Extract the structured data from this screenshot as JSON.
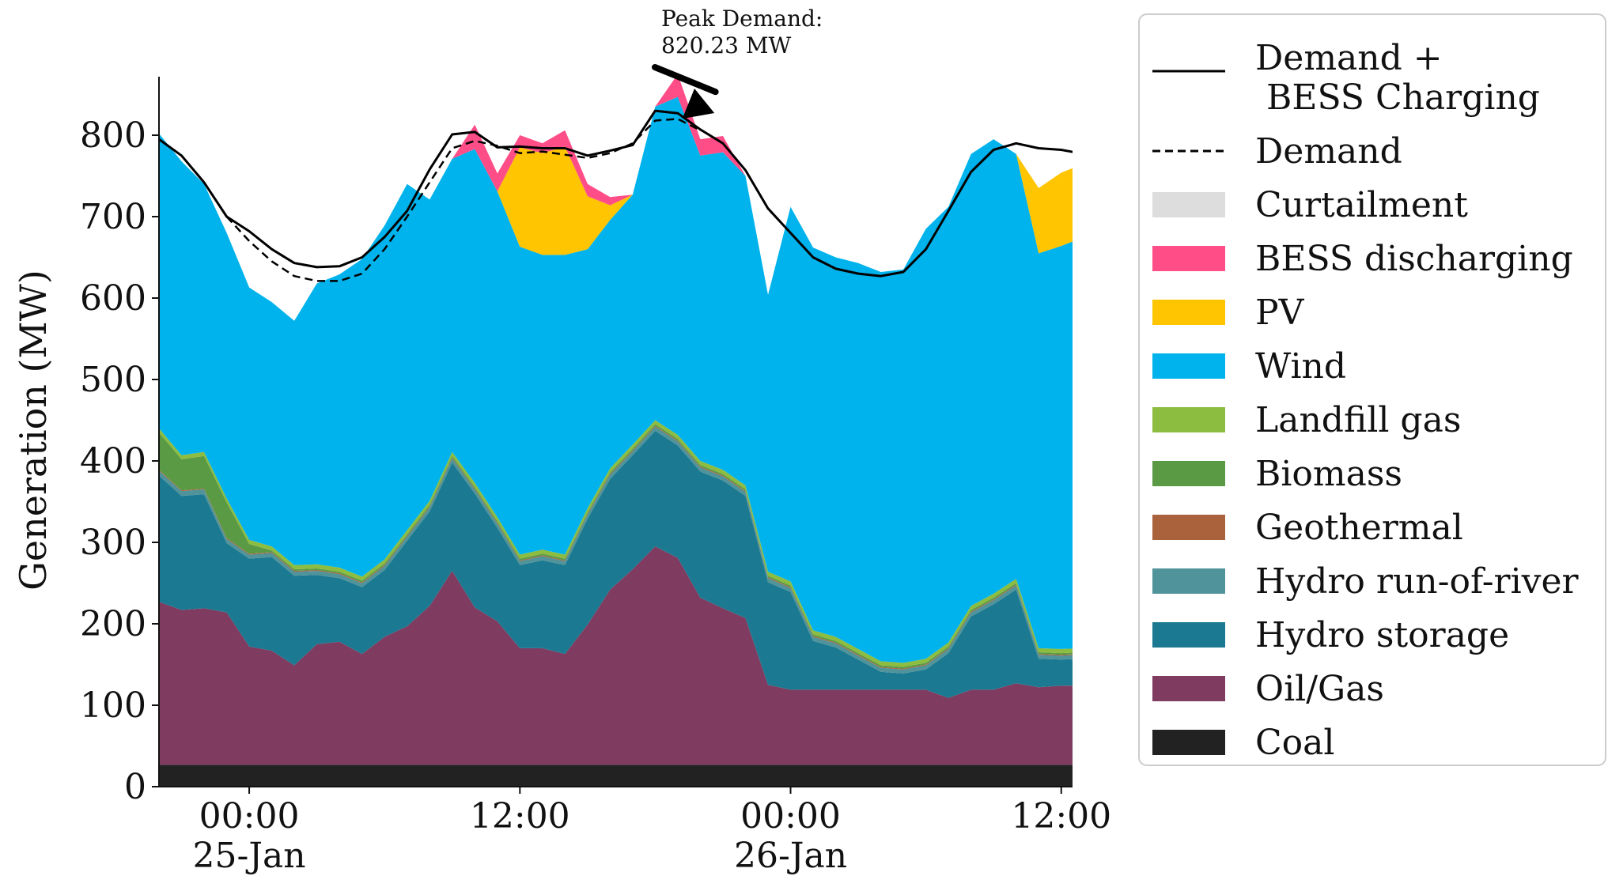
{
  "chart_data": {
    "type": "area",
    "title": "",
    "xlabel": "",
    "ylabel": "Generation (MW)",
    "ylim": [
      0,
      850
    ],
    "xlim": [
      -4,
      36.5
    ],
    "x_unit": "hours from 25-Jan 00:00",
    "grid": false,
    "legend_position": "right, outside plot",
    "x_ticks": [
      {
        "value": 0,
        "label_time": "00:00",
        "label_date": "25-Jan"
      },
      {
        "value": 12,
        "label_time": "12:00",
        "label_date": ""
      },
      {
        "value": 24,
        "label_time": "00:00",
        "label_date": "26-Jan"
      },
      {
        "value": 36,
        "label_time": "12:00",
        "label_date": ""
      }
    ],
    "y_ticks": [
      0,
      100,
      200,
      300,
      400,
      500,
      600,
      700,
      800
    ],
    "x": [
      -5,
      -4,
      -3,
      -2,
      -1,
      0,
      1,
      2,
      3,
      4,
      5,
      6,
      7,
      8,
      9,
      10,
      11,
      12,
      13,
      14,
      15,
      16,
      17,
      18,
      19,
      20,
      21,
      22,
      23,
      24,
      25,
      26,
      27,
      28,
      29,
      30,
      31,
      32,
      33,
      34,
      35,
      36,
      37,
      38,
      39,
      40,
      41
    ],
    "series": [
      {
        "name": "Coal",
        "color": "#222222",
        "values": [
          27,
          27,
          27,
          27,
          27,
          27,
          27,
          27,
          27,
          27,
          27,
          27,
          27,
          27,
          27,
          27,
          27,
          27,
          27,
          27,
          27,
          27,
          27,
          27,
          27,
          27,
          27,
          27,
          27,
          27,
          27,
          27,
          27,
          27,
          27,
          27,
          27,
          27,
          27,
          27,
          27,
          27,
          27,
          27,
          27,
          27,
          27
        ]
      },
      {
        "name": "Oil/Gas",
        "color": "#7f3b60",
        "values": [
          212,
          200,
          190,
          192,
          187,
          145,
          140,
          122,
          148,
          151,
          136,
          157,
          170,
          195,
          238,
          193,
          176,
          143,
          143,
          136,
          172,
          215,
          240,
          268,
          254,
          205,
          192,
          180,
          98,
          92,
          92,
          92,
          92,
          92,
          92,
          92,
          82,
          92,
          92,
          100,
          95,
          97,
          97,
          97,
          97,
          97,
          98
        ]
      },
      {
        "name": "Hydro storage",
        "color": "#1b7a91",
        "values": [
          147,
          155,
          140,
          140,
          85,
          108,
          115,
          110,
          85,
          78,
          82,
          82,
          105,
          116,
          133,
          140,
          115,
          102,
          108,
          109,
          130,
          136,
          140,
          142,
          138,
          155,
          157,
          150,
          126,
          120,
          60,
          52,
          37,
          22,
          20,
          25,
          55,
          90,
          105,
          115,
          35,
          32,
          33,
          35,
          100,
          105,
          120
        ]
      },
      {
        "name": "Hydro run-of-river",
        "color": "#50939a",
        "values": [
          6,
          6,
          6,
          6,
          5,
          5,
          5,
          5,
          5,
          5,
          5,
          5,
          5,
          5,
          5,
          5,
          5,
          5,
          5,
          5,
          5,
          5,
          5,
          5,
          5,
          5,
          5,
          5,
          5,
          5,
          5,
          5,
          5,
          5,
          5,
          5,
          5,
          5,
          5,
          5,
          5,
          5,
          5,
          5,
          5,
          5,
          5
        ]
      },
      {
        "name": "Geothermal",
        "color": "#a9623b",
        "values": [
          1,
          1,
          1,
          1,
          1,
          1,
          1,
          1,
          1,
          1,
          1,
          1,
          1,
          1,
          1,
          1,
          1,
          1,
          1,
          1,
          1,
          1,
          1,
          1,
          1,
          1,
          1,
          1,
          1,
          1,
          1,
          1,
          1,
          1,
          1,
          1,
          1,
          1,
          1,
          1,
          1,
          1,
          1,
          1,
          1,
          1,
          1
        ]
      },
      {
        "name": "Biomass",
        "color": "#5a9a45",
        "values": [
          45,
          46,
          38,
          40,
          44,
          12,
          2,
          2,
          2,
          2,
          2,
          2,
          2,
          2,
          2,
          2,
          2,
          2,
          2,
          2,
          2,
          2,
          2,
          2,
          2,
          2,
          2,
          2,
          2,
          2,
          2,
          2,
          2,
          2,
          2,
          2,
          2,
          2,
          2,
          2,
          2,
          2,
          2,
          2,
          2,
          2,
          2
        ]
      },
      {
        "name": "Landfill gas",
        "color": "#8cbd40",
        "values": [
          5,
          5,
          5,
          5,
          5,
          5,
          5,
          5,
          5,
          5,
          5,
          5,
          5,
          5,
          5,
          5,
          5,
          5,
          5,
          5,
          5,
          5,
          5,
          5,
          5,
          5,
          5,
          5,
          5,
          5,
          5,
          5,
          5,
          5,
          5,
          5,
          5,
          5,
          5,
          5,
          5,
          5,
          5,
          5,
          5,
          5,
          5
        ]
      },
      {
        "name": "Wind",
        "color": "#00b3ec",
        "values": [
          370,
          362,
          361,
          329,
          326,
          310,
          300,
          300,
          345,
          360,
          390,
          410,
          425,
          370,
          360,
          410,
          400,
          378,
          362,
          368,
          318,
          305,
          307,
          385,
          415,
          375,
          390,
          380,
          340,
          460,
          470,
          466,
          474,
          478,
          483,
          528,
          535,
          555,
          558,
          522,
          485,
          495,
          505,
          525,
          590,
          570,
          560
        ]
      },
      {
        "name": "PV",
        "color": "#ffc500",
        "values": [
          0,
          0,
          0,
          0,
          0,
          0,
          0,
          0,
          0,
          0,
          0,
          0,
          0,
          0,
          0,
          0,
          0,
          122,
          125,
          133,
          65,
          18,
          0,
          0,
          0,
          0,
          0,
          0,
          0,
          0,
          0,
          0,
          0,
          0,
          0,
          0,
          0,
          0,
          0,
          0,
          80,
          90,
          90,
          75,
          0,
          0,
          0
        ]
      },
      {
        "name": "BESS discharging",
        "color": "#ff4d88",
        "values": [
          0,
          0,
          0,
          0,
          0,
          0,
          0,
          0,
          0,
          0,
          0,
          0,
          0,
          0,
          0,
          30,
          22,
          15,
          12,
          20,
          15,
          10,
          0,
          0,
          28,
          20,
          20,
          0,
          0,
          0,
          0,
          0,
          0,
          0,
          0,
          0,
          0,
          0,
          0,
          0,
          0,
          0,
          0,
          0,
          0,
          0,
          0
        ]
      },
      {
        "name": "Curtailment",
        "color": "#dddddd",
        "values": [
          0,
          0,
          0,
          0,
          0,
          0,
          0,
          0,
          0,
          0,
          0,
          0,
          0,
          0,
          0,
          0,
          0,
          0,
          0,
          0,
          0,
          0,
          0,
          0,
          0,
          0,
          0,
          0,
          0,
          0,
          0,
          0,
          0,
          0,
          0,
          0,
          0,
          0,
          0,
          0,
          0,
          0,
          0,
          0,
          0,
          0,
          0
        ]
      }
    ],
    "lines": [
      {
        "name": "Demand +\n BESS Charging",
        "style": "solid",
        "color": "#000000",
        "x": [
          -5,
          -4,
          -3,
          -2,
          -1,
          0,
          1,
          2,
          3,
          4,
          5,
          6,
          7,
          8,
          9,
          10,
          11,
          12,
          13,
          14,
          15,
          16,
          17,
          18,
          19,
          20,
          21,
          22,
          23,
          24,
          25,
          26,
          27,
          28,
          29,
          30,
          31,
          32,
          33,
          34,
          35,
          36,
          37,
          38,
          39,
          40,
          41
        ],
        "values": [
          812,
          795,
          775,
          742,
          700,
          682,
          660,
          643,
          638,
          639,
          650,
          675,
          707,
          758,
          801,
          804,
          785,
          786,
          784,
          784,
          775,
          781,
          788,
          830,
          827,
          807,
          790,
          757,
          710,
          680,
          650,
          636,
          630,
          627,
          632,
          660,
          707,
          755,
          782,
          790,
          784,
          782,
          777,
          770,
          768,
          766,
          769
        ]
      },
      {
        "name": "Demand",
        "style": "dashed",
        "color": "#000000",
        "x": [
          -1,
          0,
          1,
          2,
          3,
          4,
          5,
          6,
          7,
          8,
          9,
          10,
          11,
          12,
          13,
          14,
          15,
          16,
          17,
          18,
          19,
          20
        ],
        "values": [
          700,
          670,
          645,
          627,
          621,
          621,
          630,
          660,
          700,
          742,
          784,
          793,
          787,
          778,
          780,
          776,
          772,
          778,
          790,
          818,
          820,
          806
        ]
      }
    ],
    "annotations": [
      {
        "text_line1": "Peak Demand:",
        "text_line2": "820.23 MW",
        "x": 19.2,
        "y": 820.23
      }
    ],
    "legend": [
      {
        "label_line1": "Demand +",
        "label_line2": " BESS Charging",
        "kind": "line-solid",
        "color": "#000000"
      },
      {
        "label_line1": "Demand",
        "label_line2": "",
        "kind": "line-dashed",
        "color": "#000000"
      },
      {
        "label_line1": "Curtailment",
        "label_line2": "",
        "kind": "patch",
        "color": "#dddddd"
      },
      {
        "label_line1": "BESS discharging",
        "label_line2": "",
        "kind": "patch",
        "color": "#ff4d88"
      },
      {
        "label_line1": "PV",
        "label_line2": "",
        "kind": "patch",
        "color": "#ffc500"
      },
      {
        "label_line1": "Wind",
        "label_line2": "",
        "kind": "patch",
        "color": "#00b3ec"
      },
      {
        "label_line1": "Landfill gas",
        "label_line2": "",
        "kind": "patch",
        "color": "#8cbd40"
      },
      {
        "label_line1": "Biomass",
        "label_line2": "",
        "kind": "patch",
        "color": "#5a9a45"
      },
      {
        "label_line1": "Geothermal",
        "label_line2": "",
        "kind": "patch",
        "color": "#a9623b"
      },
      {
        "label_line1": "Hydro run-of-river",
        "label_line2": "",
        "kind": "patch",
        "color": "#50939a"
      },
      {
        "label_line1": "Hydro storage",
        "label_line2": "",
        "kind": "patch",
        "color": "#1b7a91"
      },
      {
        "label_line1": "Oil/Gas",
        "label_line2": "",
        "kind": "patch",
        "color": "#7f3b60"
      },
      {
        "label_line1": "Coal",
        "label_line2": "",
        "kind": "patch",
        "color": "#222222"
      }
    ]
  }
}
